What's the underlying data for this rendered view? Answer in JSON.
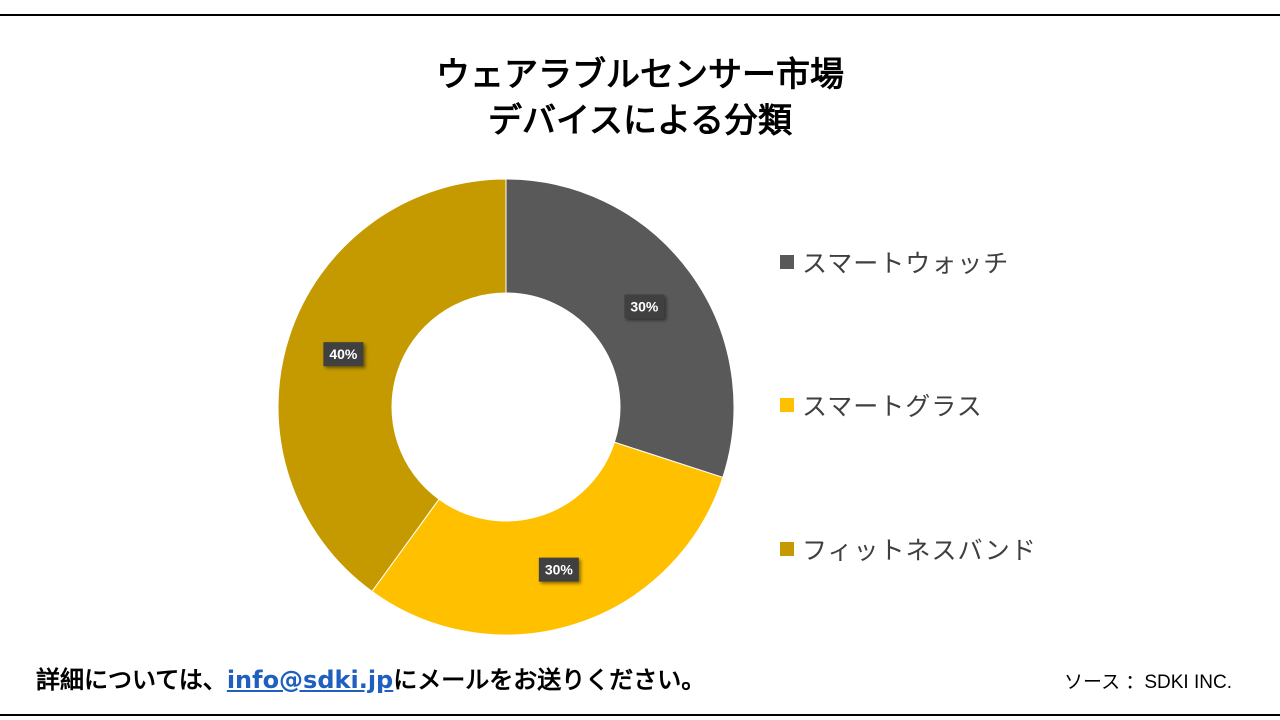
{
  "title": {
    "line1": "ウェアラブルセンサー市場",
    "line2": "デバイスによる分類"
  },
  "chart_data": {
    "type": "pie",
    "variant": "donut",
    "title": "ウェアラブルセンサー市場 デバイスによる分類",
    "categories": [
      "スマートウォッチ",
      "スマートグラス",
      "フィットネスバンド"
    ],
    "values": [
      30,
      30,
      40
    ],
    "labels": [
      "30%",
      "30%",
      "40%"
    ],
    "colors": [
      "#595959",
      "#ffc000",
      "#c49a00"
    ],
    "legend_position": "right"
  },
  "footer": {
    "prefix": "詳細については、",
    "email": "info@sdki.jp",
    "suffix": "にメールをお送りください。",
    "source": "ソース ：SDKI INC."
  }
}
